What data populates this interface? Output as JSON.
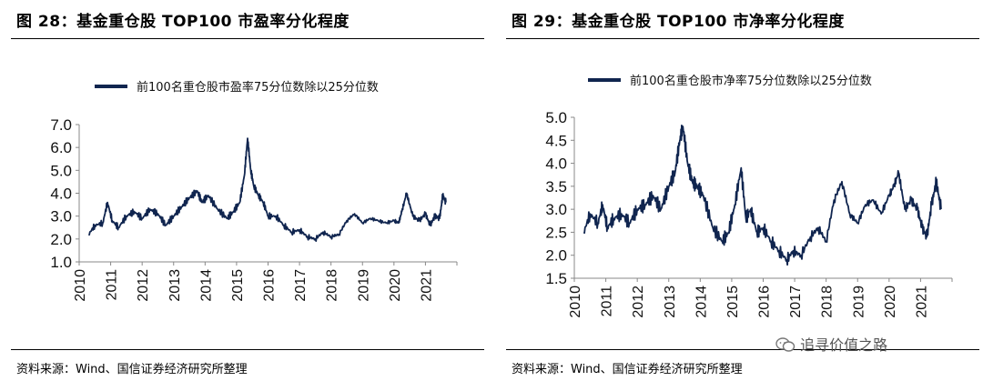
{
  "charts": [
    {
      "title": "图 28：基金重仓股 TOP100 市盈率分化程度",
      "source": "资料来源：Wind、国信证券经济研究所整理",
      "chart_data": {
        "type": "line",
        "series": [
          {
            "name": "前100名重仓股市盈率75分位数除以25分位数",
            "color": "#10254f",
            "x": [
              2010.3,
              2010.5,
              2010.75,
              2010.9,
              2011.05,
              2011.25,
              2011.5,
              2011.75,
              2012.0,
              2012.25,
              2012.5,
              2012.75,
              2013.0,
              2013.25,
              2013.5,
              2013.75,
              2013.9,
              2014.1,
              2014.4,
              2014.7,
              2014.9,
              2015.1,
              2015.25,
              2015.35,
              2015.45,
              2015.55,
              2015.7,
              2015.85,
              2016.0,
              2016.25,
              2016.5,
              2016.75,
              2017.0,
              2017.25,
              2017.5,
              2017.75,
              2018.0,
              2018.25,
              2018.5,
              2018.75,
              2019.0,
              2019.25,
              2019.5,
              2019.75,
              2020.0,
              2020.15,
              2020.25,
              2020.4,
              2020.6,
              2020.8,
              2021.0,
              2021.15,
              2021.3,
              2021.45,
              2021.55,
              2021.65
            ],
            "y": [
              2.2,
              2.6,
              2.7,
              3.6,
              2.8,
              2.5,
              3.0,
              3.2,
              2.9,
              3.3,
              3.1,
              2.6,
              3.0,
              3.4,
              3.8,
              4.1,
              3.6,
              3.9,
              3.3,
              2.9,
              3.2,
              3.6,
              4.8,
              6.4,
              5.0,
              4.3,
              3.9,
              3.6,
              3.0,
              3.0,
              2.6,
              2.3,
              2.4,
              2.1,
              2.0,
              2.3,
              2.1,
              2.2,
              2.8,
              3.1,
              2.7,
              2.9,
              2.8,
              2.7,
              2.8,
              2.7,
              3.2,
              4.0,
              3.0,
              2.8,
              3.1,
              2.6,
              3.0,
              2.9,
              3.9,
              3.6
            ]
          }
        ],
        "ylim": [
          1.0,
          7.0
        ],
        "yticks": [
          "1.0",
          "2.0",
          "3.0",
          "4.0",
          "5.0",
          "6.0",
          "7.0"
        ],
        "xticks": [
          "2010",
          "2011",
          "2012",
          "2013",
          "2014",
          "2015",
          "2016",
          "2017",
          "2018",
          "2019",
          "2020",
          "2021"
        ],
        "xlim": [
          2010,
          2022
        ],
        "grid": false,
        "legend": "top-left"
      }
    },
    {
      "title": "图 29：基金重仓股 TOP100 市净率分化程度",
      "source": "资料来源：Wind、国信证券经济研究所整理",
      "chart_data": {
        "type": "line",
        "series": [
          {
            "name": "前100名重仓股市净率75分位数除以25分位数",
            "color": "#10254f",
            "x": [
              2010.3,
              2010.5,
              2010.75,
              2010.9,
              2011.05,
              2011.25,
              2011.5,
              2011.75,
              2012.0,
              2012.25,
              2012.5,
              2012.75,
              2013.0,
              2013.2,
              2013.35,
              2013.45,
              2013.6,
              2013.75,
              2013.9,
              2014.1,
              2014.4,
              2014.7,
              2014.9,
              2015.1,
              2015.3,
              2015.45,
              2015.6,
              2015.8,
              2016.0,
              2016.25,
              2016.5,
              2016.75,
              2016.95,
              2017.2,
              2017.5,
              2017.75,
              2018.0,
              2018.25,
              2018.5,
              2018.75,
              2019.0,
              2019.25,
              2019.5,
              2019.75,
              2020.0,
              2020.15,
              2020.3,
              2020.5,
              2020.7,
              2020.9,
              2021.05,
              2021.2,
              2021.35,
              2021.5,
              2021.65
            ],
            "y": [
              2.5,
              2.9,
              2.7,
              3.1,
              2.6,
              2.8,
              2.9,
              2.7,
              3.0,
              3.1,
              3.3,
              3.0,
              3.5,
              3.8,
              4.5,
              4.8,
              4.0,
              3.6,
              3.5,
              3.3,
              2.6,
              2.3,
              2.5,
              3.1,
              3.9,
              2.8,
              3.0,
              2.5,
              2.6,
              2.3,
              2.1,
              1.9,
              2.1,
              2.0,
              2.4,
              2.6,
              2.3,
              3.2,
              3.6,
              2.9,
              2.7,
              3.1,
              3.2,
              2.9,
              3.3,
              3.5,
              3.8,
              3.0,
              3.2,
              3.0,
              2.6,
              2.4,
              3.1,
              3.6,
              3.0
            ],
            "note": ""
          }
        ],
        "ylim": [
          1.5,
          5.0
        ],
        "yticks": [
          "1.5",
          "2.0",
          "2.5",
          "3.0",
          "3.5",
          "4.0",
          "4.5",
          "5.0"
        ],
        "xticks": [
          "2010",
          "2011",
          "2012",
          "2013",
          "2014",
          "2015",
          "2016",
          "2017",
          "2018",
          "2019",
          "2020",
          "2021"
        ],
        "xlim": [
          2010,
          2022
        ],
        "grid": false,
        "legend": "top-left"
      }
    }
  ],
  "watermark": {
    "text": "追寻价值之路",
    "icon": "wechat-icon"
  }
}
